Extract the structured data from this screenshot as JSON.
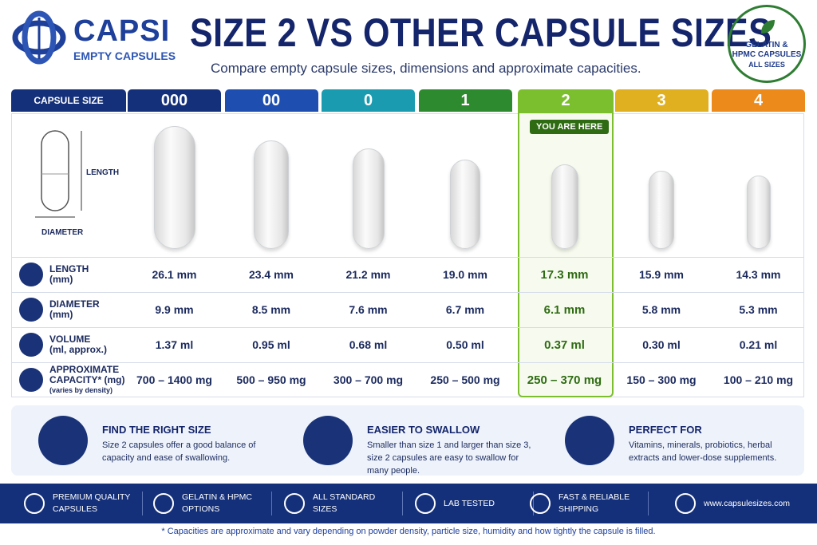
{
  "header": {
    "logo_name": "CAPSI",
    "logo_sub": "EMPTY CAPSULES",
    "title": "SIZE 2 VS OTHER CAPSULE SIZES",
    "subtitle": "Compare empty capsule sizes, dimensions and approximate capacities.",
    "badge": [
      "GELATIN &",
      "HPMC CAPSULES",
      "ALL SIZES"
    ]
  },
  "table": {
    "header_label": "CAPSULE SIZE",
    "sizes": [
      "000",
      "00",
      "0",
      "1",
      "2",
      "3",
      "4"
    ],
    "highlight": "YOU ARE HERE",
    "diagram": {
      "length": "LENGTH",
      "diameter": "DIAMETER"
    },
    "rows": [
      {
        "label": [
          "LENGTH",
          "(mm)"
        ],
        "values": [
          "26.1 mm",
          "23.4 mm",
          "21.2 mm",
          "19.0 mm",
          "17.3 mm",
          "15.9 mm",
          "14.3 mm"
        ]
      },
      {
        "label": [
          "DIAMETER",
          "(mm)"
        ],
        "values": [
          "9.9 mm",
          "8.5 mm",
          "7.6 mm",
          "6.7 mm",
          "6.1 mm",
          "5.8 mm",
          "5.3 mm"
        ]
      },
      {
        "label": [
          "VOLUME",
          "(ml, approx.)"
        ],
        "values": [
          "1.37 ml",
          "0.95 ml",
          "0.68 ml",
          "0.50 ml",
          "0.37 ml",
          "0.30 ml",
          "0.21 ml"
        ]
      },
      {
        "label": [
          "APPROXIMATE",
          "CAPACITY* (mg)",
          "(varies by density)"
        ],
        "values": [
          "700 – 1400 mg",
          "500 – 950 mg",
          "300 – 700 mg",
          "250 – 500 mg",
          "250 – 370 mg",
          "150 – 300 mg",
          "100 – 210 mg"
        ]
      }
    ]
  },
  "features": [
    {
      "title": "FIND THE RIGHT SIZE",
      "text": "Size 2 capsules offer a good balance of capacity and ease of swallowing."
    },
    {
      "title": "EASIER TO SWALLOW",
      "text": "Smaller than size 1 and larger than size 3, size 2 capsules are easy to swallow for many people."
    },
    {
      "title": "PERFECT FOR",
      "text": "Vitamins, minerals, probiotics, herbal extracts and lower-dose supplements."
    }
  ],
  "footer_bar": [
    [
      "PREMIUM QUALITY",
      "CAPSULES"
    ],
    [
      "GELATIN & HPMC",
      "OPTIONS"
    ],
    [
      "ALL STANDARD",
      "SIZES"
    ],
    [
      "LAB TESTED"
    ],
    [
      "FAST & RELIABLE",
      "SHIPPING"
    ],
    [
      "www.capsulesizes.com"
    ]
  ],
  "footnote": "* Capacities are approximate and vary depending on powder density, particle size, humidity and how tightly the capsule is filled."
}
